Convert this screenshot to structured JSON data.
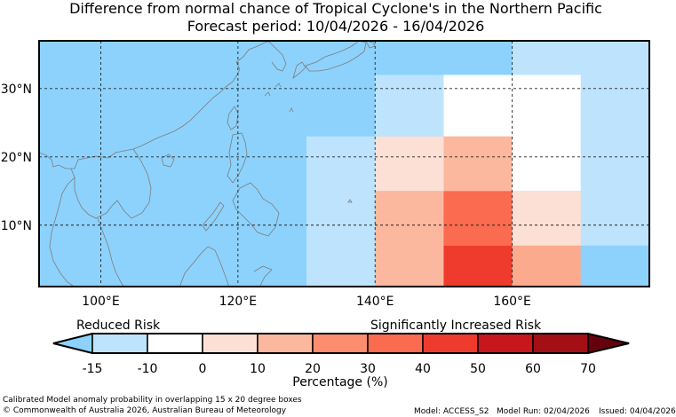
{
  "title": "Difference from normal chance of Tropical Cyclone's in the Northern Pacific",
  "subtitle": "Forecast period: 10/04/2026 - 16/04/2026",
  "map": {
    "lon_range": [
      91,
      180
    ],
    "lat_range": [
      1,
      37
    ],
    "lon_ticks": [
      {
        "value": 100,
        "label": "100°E"
      },
      {
        "value": 120,
        "label": "120°E"
      },
      {
        "value": 140,
        "label": "140°E"
      },
      {
        "value": 160,
        "label": "160°E"
      }
    ],
    "lat_ticks": [
      {
        "value": 30,
        "label": "30°N"
      },
      {
        "value": 20,
        "label": "20°N"
      },
      {
        "value": 10,
        "label": "10°N"
      }
    ],
    "background_color": "#8dd2fc",
    "cells": [
      {
        "lon": [
          160,
          180
        ],
        "lat": [
          30,
          37
        ],
        "color": "#bde4fc"
      },
      {
        "lon": [
          170,
          180
        ],
        "lat": [
          7,
          30
        ],
        "color": "#bde4fc"
      },
      {
        "lon": [
          140,
          150
        ],
        "lat": [
          23,
          32
        ],
        "color": "#bde4fc"
      },
      {
        "lon": [
          130,
          140
        ],
        "lat": [
          1,
          23
        ],
        "color": "#bde4fc"
      },
      {
        "lon": [
          150,
          170
        ],
        "lat": [
          15,
          32
        ],
        "color": "#ffffff"
      },
      {
        "lon": [
          140,
          160
        ],
        "lat": [
          15,
          23
        ],
        "color": "#fde0d5"
      },
      {
        "lon": [
          150,
          160
        ],
        "lat": [
          15,
          23
        ],
        "color": "#fcb89e"
      },
      {
        "lon": [
          160,
          170
        ],
        "lat": [
          7,
          15
        ],
        "color": "#fde0d5"
      },
      {
        "lon": [
          140,
          150
        ],
        "lat": [
          1,
          15
        ],
        "color": "#fcb89e"
      },
      {
        "lon": [
          150,
          160
        ],
        "lat": [
          7,
          15
        ],
        "color": "#fb6b4f"
      },
      {
        "lon": [
          150,
          160
        ],
        "lat": [
          1,
          7
        ],
        "color": "#ee3b2d"
      },
      {
        "lon": [
          160,
          170
        ],
        "lat": [
          1,
          7
        ],
        "color": "#fcaa8e"
      },
      {
        "lon": [
          170,
          180
        ],
        "lat": [
          1,
          7
        ],
        "color": "#8dd2fc"
      }
    ]
  },
  "legend": {
    "left_label": "Reduced Risk",
    "right_label": "Significantly Increased Risk",
    "axis_label": "Percentage (%)",
    "ticks": [
      "-15",
      "-10",
      "0",
      "10",
      "20",
      "30",
      "40",
      "50",
      "60",
      "70"
    ],
    "colors": [
      "#bde4fc",
      "#ffffff",
      "#fde0d5",
      "#fcb89e",
      "#fc8d6e",
      "#fb6b4f",
      "#ee3b2d",
      "#c7171c",
      "#a40f16"
    ],
    "under_color": "#8dd2fc",
    "over_color": "#67000d"
  },
  "footer": {
    "line1": "Calibrated Model anomaly probability in overlapping 15 x 20 degree boxes",
    "line2": "© Commonwealth of Australia 2026, Australian Bureau of Meteorology",
    "model": "Model: ACCESS_S2",
    "run": "Model Run: 02/04/2026",
    "issued": "Issued: 04/04/2026"
  }
}
